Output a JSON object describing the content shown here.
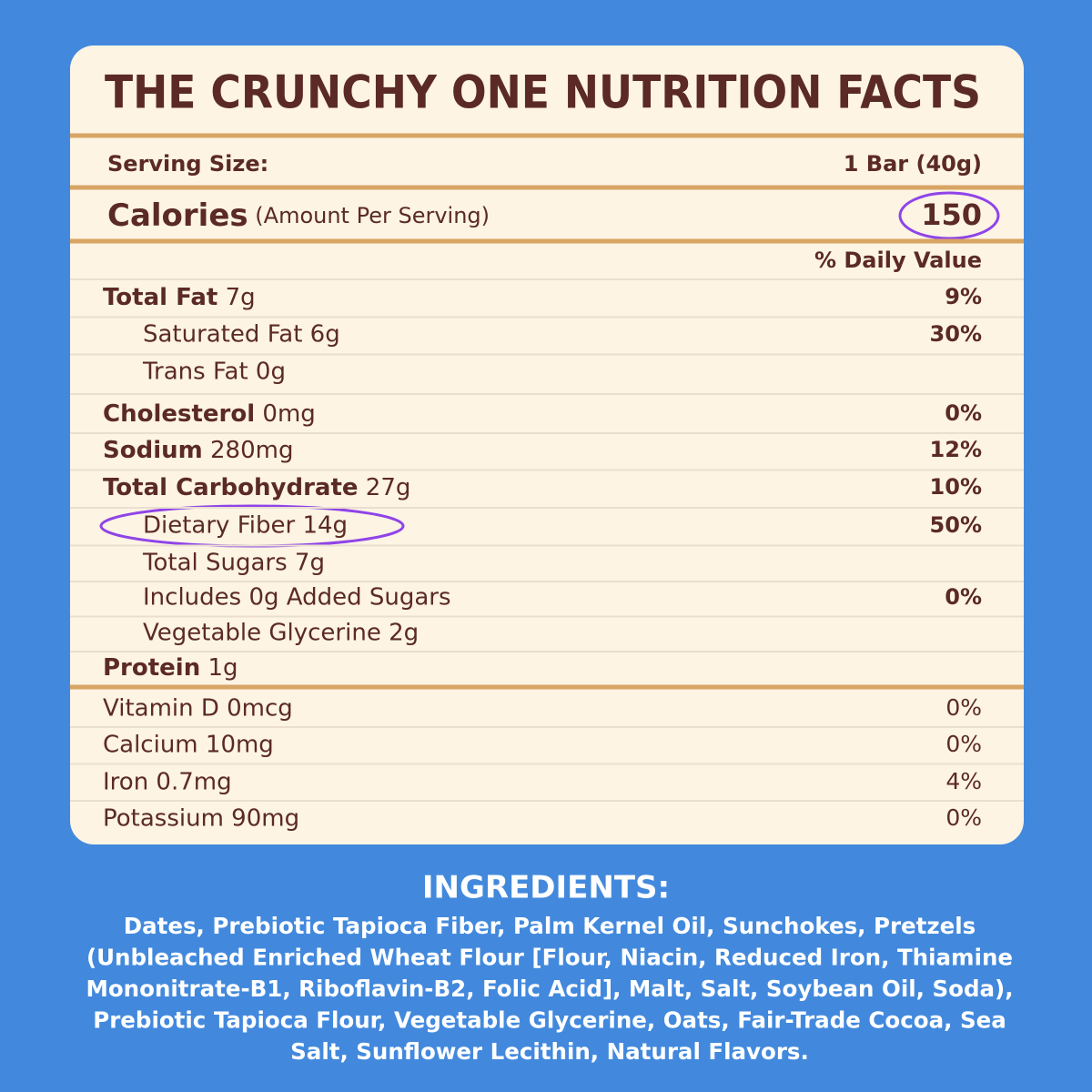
{
  "panel": {
    "title": "THE CRUNCHY ONE NUTRITION FACTS",
    "serving": {
      "label": "Serving Size:",
      "value": "1 Bar (40g)"
    },
    "calories": {
      "label": "Calories",
      "note": "(Amount Per Serving)",
      "value": "150"
    },
    "daily_value_header": "% Daily Value",
    "nutrients": [
      {
        "name": "Total Fat",
        "amount": "7g",
        "dv": "9%"
      },
      {
        "sub": "Saturated Fat 6g",
        "dv": "30%"
      },
      {
        "sub": "Trans Fat 0g"
      },
      {
        "name": "Cholesterol",
        "amount": "0mg",
        "dv": "0%"
      },
      {
        "name": "Sodium",
        "amount": "280mg",
        "dv": "12%"
      },
      {
        "name": "Total Carbohydrate",
        "amount": "27g",
        "dv": "10%"
      },
      {
        "sub": "Dietary Fiber 14g",
        "dv": "50%"
      },
      {
        "sub": "Total Sugars 7g"
      },
      {
        "sub": "Includes 0g Added Sugars",
        "dv": "0%"
      },
      {
        "sub": "Vegetable Glycerine 2g"
      },
      {
        "name": "Protein",
        "amount": "1g"
      }
    ],
    "vitamins": [
      {
        "text": "Vitamin D 0mcg",
        "dv": "0%"
      },
      {
        "text": "Calcium 10mg",
        "dv": "0%"
      },
      {
        "text": "Iron 0.7mg",
        "dv": "4%"
      },
      {
        "text": "Potassium 90mg",
        "dv": "0%"
      }
    ]
  },
  "ingredients": {
    "title": "INGREDIENTS:",
    "lines": [
      "Dates, Prebiotic Tapioca Fiber, Palm Kernel Oil, Sunchokes, Pretzels",
      "(Unbleached Enriched Wheat Flour [Flour, Niacin, Reduced Iron, Thiamine",
      "Mononitrate-B1, Riboflavin-B2, Folic Acid], Malt, Salt, Soybean Oil, Soda),",
      "Prebiotic Tapioca Flour, Vegetable Glycerine, Oats, Fair-Trade Cocoa, Sea",
      "Salt, Sunflower Lecithin, Natural Flavors."
    ]
  }
}
